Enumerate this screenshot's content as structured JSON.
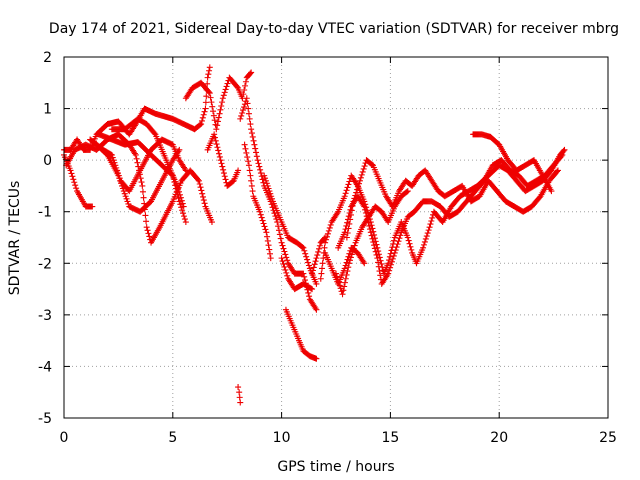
{
  "chart_data": {
    "type": "scatter",
    "title": "Day 174 of 2021, Sidereal Day-to-day VTEC variation (SDTVAR) for receiver mbrg",
    "xlabel": "GPS time / hours",
    "ylabel": "SDTVAR / TECUs",
    "xlim": [
      0,
      25
    ],
    "ylim": [
      -5,
      2
    ],
    "xticks": [
      "0",
      "5",
      "10",
      "15",
      "20",
      "25"
    ],
    "yticks": [
      "2",
      "1",
      "0",
      "-1",
      "-2",
      "-3",
      "-4",
      "-5"
    ],
    "grid": true,
    "marker": "+",
    "series_color": "#ee0000",
    "tracks": [
      [
        [
          0,
          0.2
        ],
        [
          0.3,
          0.2
        ],
        [
          0.6,
          0.4
        ],
        [
          0.9,
          0.2
        ],
        [
          1.2,
          0.2
        ],
        [
          1.5,
          0.5
        ],
        [
          2,
          0.7
        ],
        [
          2.5,
          0.75
        ],
        [
          3,
          0.5
        ],
        [
          3.3,
          0.7
        ],
        [
          3.7,
          1.0
        ],
        [
          4.2,
          0.9
        ],
        [
          5,
          0.8
        ],
        [
          5.5,
          0.7
        ],
        [
          6,
          0.6
        ],
        [
          6.3,
          0.7
        ],
        [
          6.5,
          1.0
        ],
        [
          6.6,
          1.6
        ],
        [
          6.7,
          1.8
        ]
      ],
      [
        [
          0,
          0.1
        ],
        [
          0.3,
          -0.2
        ],
        [
          0.6,
          -0.6
        ],
        [
          1,
          -0.9
        ],
        [
          1.3,
          -0.9
        ]
      ],
      [
        [
          0.1,
          -0.1
        ],
        [
          0.5,
          0.2
        ],
        [
          1,
          0.3
        ],
        [
          1.5,
          0.2
        ],
        [
          2,
          0.4
        ],
        [
          2.5,
          0.5
        ],
        [
          3,
          0.3
        ],
        [
          3.3,
          0.1
        ],
        [
          3.6,
          -0.5
        ],
        [
          3.8,
          -1.3
        ],
        [
          4,
          -1.6
        ],
        [
          4.4,
          -1.3
        ],
        [
          5,
          -0.8
        ],
        [
          5.4,
          -0.4
        ],
        [
          5.8,
          -0.2
        ],
        [
          6.2,
          -0.4
        ],
        [
          6.5,
          -0.9
        ],
        [
          6.8,
          -1.2
        ]
      ],
      [
        [
          1.5,
          0.3
        ],
        [
          2,
          0.1
        ],
        [
          2.5,
          -0.3
        ],
        [
          3,
          -0.9
        ],
        [
          3.5,
          -1.0
        ],
        [
          4,
          -0.8
        ],
        [
          4.5,
          -0.4
        ],
        [
          5,
          0.0
        ],
        [
          5.3,
          0.2
        ]
      ],
      [
        [
          1.2,
          0.4
        ],
        [
          1.8,
          0.2
        ],
        [
          2.2,
          0.1
        ],
        [
          2.6,
          -0.4
        ],
        [
          3,
          -0.6
        ],
        [
          3.5,
          -0.2
        ],
        [
          4,
          0.2
        ],
        [
          4.5,
          0.4
        ],
        [
          5,
          0.3
        ],
        [
          5.3,
          0.0
        ],
        [
          5.6,
          -0.2
        ]
      ],
      [
        [
          1.6,
          0.5
        ],
        [
          2.2,
          0.4
        ],
        [
          2.8,
          0.3
        ],
        [
          3.4,
          0.35
        ],
        [
          4,
          0.1
        ],
        [
          4.5,
          -0.1
        ],
        [
          5,
          -0.3
        ],
        [
          5.3,
          -0.8
        ],
        [
          5.6,
          -1.2
        ]
      ],
      [
        [
          2.2,
          0.6
        ],
        [
          2.8,
          0.6
        ],
        [
          3.4,
          0.8
        ],
        [
          3.8,
          0.7
        ],
        [
          4.2,
          0.5
        ],
        [
          4.7,
          0.0
        ],
        [
          5.2,
          -0.5
        ],
        [
          5.5,
          -0.9
        ]
      ],
      [
        [
          5.6,
          1.2
        ],
        [
          5.9,
          1.4
        ],
        [
          6.3,
          1.5
        ],
        [
          6.7,
          1.3
        ],
        [
          7,
          0.6
        ],
        [
          7.3,
          1.2
        ],
        [
          7.6,
          1.6
        ],
        [
          8,
          1.4
        ],
        [
          8.2,
          1.2
        ],
        [
          8.4,
          1.6
        ],
        [
          8.6,
          1.7
        ]
      ],
      [
        [
          6.6,
          0.2
        ],
        [
          6.9,
          0.5
        ],
        [
          7.2,
          0.0
        ],
        [
          7.5,
          -0.5
        ],
        [
          7.8,
          -0.4
        ],
        [
          8,
          -0.2
        ]
      ],
      [
        [
          8.1,
          0.8
        ],
        [
          8.4,
          1.2
        ],
        [
          8.6,
          0.6
        ],
        [
          8.9,
          0.0
        ],
        [
          9.2,
          -0.5
        ],
        [
          9.5,
          -0.8
        ],
        [
          9.8,
          -1.2
        ],
        [
          10,
          -1.6
        ],
        [
          10.3,
          -2.0
        ],
        [
          10.6,
          -2.2
        ],
        [
          11,
          -2.2
        ],
        [
          11.3,
          -2.7
        ],
        [
          11.6,
          -2.9
        ]
      ],
      [
        [
          8.3,
          0.3
        ],
        [
          8.5,
          -0.1
        ],
        [
          8.7,
          -0.7
        ],
        [
          9,
          -1.0
        ],
        [
          9.3,
          -1.4
        ],
        [
          9.5,
          -1.9
        ]
      ],
      [
        [
          9.2,
          -0.3
        ],
        [
          9.6,
          -0.8
        ],
        [
          10,
          -1.2
        ],
        [
          10.3,
          -1.5
        ],
        [
          10.7,
          -1.6
        ],
        [
          11,
          -1.7
        ],
        [
          11.3,
          -2.1
        ],
        [
          11.6,
          -2.4
        ]
      ],
      [
        [
          10,
          -1.9
        ],
        [
          10.3,
          -2.3
        ],
        [
          10.6,
          -2.5
        ],
        [
          11,
          -2.4
        ],
        [
          11.4,
          -2.5
        ]
      ],
      [
        [
          10.2,
          -2.9
        ],
        [
          10.5,
          -3.2
        ],
        [
          10.8,
          -3.5
        ],
        [
          11,
          -3.7
        ],
        [
          11.3,
          -3.8
        ],
        [
          11.6,
          -3.85
        ]
      ],
      [
        [
          8,
          -4.4
        ],
        [
          8.05,
          -4.5
        ],
        [
          8.1,
          -4.7
        ]
      ],
      [
        [
          11.4,
          -2.2
        ],
        [
          11.8,
          -1.6
        ],
        [
          12,
          -1.5
        ]
      ],
      [
        [
          11.8,
          -2.3
        ],
        [
          12,
          -1.6
        ],
        [
          12.3,
          -1.2
        ],
        [
          12.6,
          -1.0
        ],
        [
          12.9,
          -0.7
        ],
        [
          13.2,
          -0.3
        ],
        [
          13.5,
          -0.5
        ],
        [
          13.8,
          -0.8
        ],
        [
          14.1,
          -1.2
        ],
        [
          14.4,
          -1.7
        ],
        [
          14.7,
          -2.2
        ],
        [
          14.9,
          -2.0
        ],
        [
          15.2,
          -1.5
        ],
        [
          15.5,
          -1.2
        ],
        [
          15.8,
          -1.5
        ],
        [
          16,
          -1.8
        ],
        [
          16.2,
          -2.0
        ],
        [
          16.5,
          -1.7
        ],
        [
          16.8,
          -1.3
        ],
        [
          17,
          -1.0
        ],
        [
          17.4,
          -1.2
        ],
        [
          17.8,
          -0.9
        ],
        [
          18.2,
          -0.7
        ],
        [
          18.6,
          -0.6
        ],
        [
          19,
          -0.5
        ],
        [
          19.5,
          -0.3
        ],
        [
          20,
          -0.1
        ],
        [
          20.4,
          -0.2
        ],
        [
          20.8,
          -0.4
        ],
        [
          21.2,
          -0.6
        ],
        [
          21.6,
          -0.5
        ],
        [
          22,
          -0.4
        ],
        [
          22.4,
          -0.2
        ],
        [
          22.8,
          0.1
        ],
        [
          23,
          0.2
        ]
      ],
      [
        [
          12.6,
          -1.7
        ],
        [
          12.9,
          -1.4
        ],
        [
          13.2,
          -0.9
        ],
        [
          13.5,
          -0.7
        ],
        [
          13.8,
          -0.9
        ],
        [
          14.1,
          -1.4
        ],
        [
          14.4,
          -1.9
        ],
        [
          14.6,
          -2.4
        ],
        [
          14.9,
          -2.2
        ],
        [
          15.2,
          -1.8
        ],
        [
          15.5,
          -1.4
        ],
        [
          15.8,
          -1.1
        ],
        [
          16.1,
          -1.0
        ],
        [
          16.5,
          -0.8
        ],
        [
          16.9,
          -0.8
        ],
        [
          17.3,
          -0.9
        ],
        [
          17.7,
          -1.1
        ],
        [
          18.1,
          -1.0
        ],
        [
          18.5,
          -0.8
        ],
        [
          18.9,
          -0.6
        ],
        [
          19.3,
          -0.4
        ],
        [
          19.7,
          -0.1
        ],
        [
          20.1,
          0.0
        ],
        [
          20.5,
          -0.2
        ],
        [
          20.9,
          -0.3
        ],
        [
          21.3,
          -0.5
        ],
        [
          21.7,
          -0.4
        ],
        [
          22.1,
          -0.3
        ],
        [
          22.5,
          -0.1
        ],
        [
          22.9,
          0.1
        ]
      ],
      [
        [
          13,
          -1.5
        ],
        [
          13.3,
          -0.8
        ],
        [
          13.6,
          -0.4
        ],
        [
          13.9,
          0.0
        ],
        [
          14.2,
          -0.1
        ],
        [
          14.5,
          -0.4
        ],
        [
          14.8,
          -0.7
        ],
        [
          15.1,
          -0.9
        ],
        [
          15.4,
          -0.6
        ],
        [
          15.7,
          -0.4
        ],
        [
          16,
          -0.5
        ],
        [
          16.3,
          -0.3
        ],
        [
          16.6,
          -0.2
        ],
        [
          16.9,
          -0.4
        ],
        [
          17.2,
          -0.6
        ],
        [
          17.5,
          -0.7
        ],
        [
          17.9,
          -0.6
        ],
        [
          18.3,
          -0.5
        ],
        [
          18.7,
          -0.8
        ],
        [
          19.1,
          -0.7
        ],
        [
          19.5,
          -0.4
        ],
        [
          19.9,
          -0.6
        ],
        [
          20.3,
          -0.8
        ],
        [
          20.7,
          -0.9
        ],
        [
          21.1,
          -1.0
        ],
        [
          21.5,
          -0.9
        ],
        [
          21.9,
          -0.7
        ],
        [
          22.3,
          -0.4
        ],
        [
          22.7,
          -0.2
        ]
      ],
      [
        [
          12.5,
          -2.2
        ],
        [
          12.8,
          -2.6
        ],
        [
          13.1,
          -2.0
        ],
        [
          13.4,
          -1.6
        ],
        [
          13.7,
          -1.3
        ],
        [
          14,
          -1.1
        ],
        [
          14.3,
          -0.9
        ],
        [
          14.6,
          -1.0
        ],
        [
          14.9,
          -1.2
        ],
        [
          15.2,
          -0.9
        ],
        [
          15.5,
          -0.7
        ],
        [
          15.8,
          -0.6
        ]
      ],
      [
        [
          18.8,
          0.5
        ],
        [
          19.2,
          0.5
        ],
        [
          19.6,
          0.45
        ],
        [
          20,
          0.3
        ],
        [
          20.4,
          0.0
        ],
        [
          20.8,
          -0.2
        ],
        [
          21.2,
          -0.1
        ],
        [
          21.6,
          0.0
        ],
        [
          22,
          -0.3
        ],
        [
          22.4,
          -0.6
        ]
      ],
      [
        [
          12,
          -1.8
        ],
        [
          12.3,
          -2.1
        ],
        [
          12.6,
          -2.4
        ],
        [
          12.9,
          -2.1
        ],
        [
          13.2,
          -1.7
        ],
        [
          13.5,
          -1.8
        ],
        [
          13.8,
          -2.0
        ]
      ]
    ]
  }
}
